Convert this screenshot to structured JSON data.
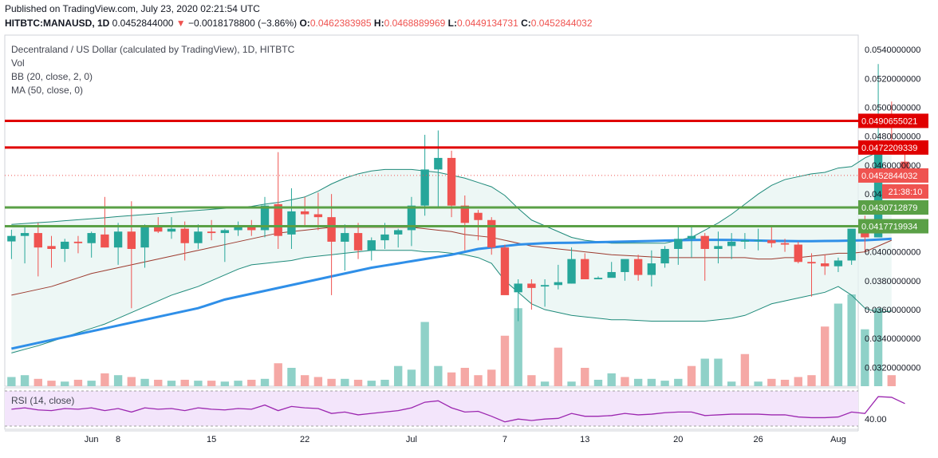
{
  "header": {
    "published": "Published on TradingView.com, July 23, 2020 02:21:54 UTC",
    "symbol": "HITBTC:MANAUSD, 1D",
    "last": "0.0452844000",
    "arrow": "▼",
    "change": "−0.0018178800 (−3.86%)",
    "o_label": "O:",
    "o_value": "0.0462383985",
    "h_label": "H:",
    "h_value": "0.0468889969",
    "l_label": "L:",
    "l_value": "0.0449134731",
    "c_label": "C:",
    "c_value": "0.0452844032"
  },
  "legend": {
    "title": "Decentraland / US Dollar (calculated by TradingView), 1D, HITBTC",
    "vol": "Vol",
    "bb": "BB (20, close, 2, 0)",
    "ma": "MA (50, close, 0)",
    "rsi": "RSI (14, close)"
  },
  "colors": {
    "up": "#26a69a",
    "down": "#ef5350",
    "up_vol": "#8fd1c8",
    "down_vol": "#f5a8a5",
    "ma": "#2f8fe8",
    "bb_band": "#1e8a7a",
    "bb_basis": "#9c3a2e",
    "resistance": "#e00000",
    "support": "#5aa046",
    "rsi": "#9c27b0"
  },
  "chart_data": {
    "type": "candlestick",
    "title": "Decentraland / US Dollar (calculated by TradingView), 1D, HITBTC",
    "ylim": [
      0.0307,
      0.055
    ],
    "y_ticks": [
      "0.0540000000",
      "0.0520000000",
      "0.0500000000",
      "0.0480000000",
      "0.0460000000",
      "0.0440000000",
      "0.0400000000",
      "0.0380000000",
      "0.0360000000",
      "0.0340000000",
      "0.0320000000"
    ],
    "x_ticks": [
      {
        "label": "Jun",
        "day": 6
      },
      {
        "label": "8",
        "day": 8
      },
      {
        "label": "15",
        "day": 15
      },
      {
        "label": "22",
        "day": 22
      },
      {
        "label": "Jul",
        "day": 30
      },
      {
        "label": "7",
        "day": 37
      },
      {
        "label": "13",
        "day": 43
      },
      {
        "label": "20",
        "day": 50
      },
      {
        "label": "26",
        "day": 56
      },
      {
        "label": "Aug",
        "day": 62
      }
    ],
    "x_start_day": -0.5,
    "x_end_day": 63.5,
    "candles": [
      [
        0.04072,
        0.04153,
        0.0395,
        0.0411
      ],
      [
        0.0411,
        0.0417,
        0.0392,
        0.0413
      ],
      [
        0.0413,
        0.042,
        0.0383,
        0.0403
      ],
      [
        0.0404,
        0.0411,
        0.0389,
        0.0402
      ],
      [
        0.0402,
        0.0409,
        0.0393,
        0.0407
      ],
      [
        0.0407,
        0.0411,
        0.0399,
        0.0406
      ],
      [
        0.0406,
        0.0414,
        0.0396,
        0.0413
      ],
      [
        0.0412,
        0.0438,
        0.0403,
        0.0403
      ],
      [
        0.0403,
        0.042,
        0.0391,
        0.0414
      ],
      [
        0.0414,
        0.0435,
        0.0361,
        0.0402
      ],
      [
        0.0403,
        0.0419,
        0.0389,
        0.0417
      ],
      [
        0.0417,
        0.0424,
        0.0413,
        0.0414
      ],
      [
        0.0414,
        0.0424,
        0.0409,
        0.0416
      ],
      [
        0.0416,
        0.0421,
        0.0394,
        0.0406
      ],
      [
        0.0406,
        0.0419,
        0.0402,
        0.0414
      ],
      [
        0.0414,
        0.0422,
        0.0408,
        0.0413
      ],
      [
        0.0413,
        0.0416,
        0.0393,
        0.0415
      ],
      [
        0.0415,
        0.0421,
        0.0411,
        0.0418
      ],
      [
        0.0418,
        0.0422,
        0.0411,
        0.0415
      ],
      [
        0.0415,
        0.0438,
        0.041,
        0.0432
      ],
      [
        0.0433,
        0.0469,
        0.0402,
        0.0411
      ],
      [
        0.0412,
        0.0444,
        0.0402,
        0.0428
      ],
      [
        0.0428,
        0.0438,
        0.0417,
        0.0426
      ],
      [
        0.0426,
        0.0441,
        0.0415,
        0.0424
      ],
      [
        0.0424,
        0.044,
        0.037,
        0.0407
      ],
      [
        0.0407,
        0.0419,
        0.0387,
        0.0413
      ],
      [
        0.0413,
        0.042,
        0.0395,
        0.0401
      ],
      [
        0.0401,
        0.041,
        0.0394,
        0.0408
      ],
      [
        0.0408,
        0.042,
        0.0402,
        0.0412
      ],
      [
        0.0412,
        0.0416,
        0.0403,
        0.0415
      ],
      [
        0.0415,
        0.0438,
        0.0404,
        0.0432
      ],
      [
        0.0432,
        0.0481,
        0.0425,
        0.0457
      ],
      [
        0.0457,
        0.0484,
        0.0431,
        0.0465
      ],
      [
        0.0465,
        0.047,
        0.0424,
        0.0432
      ],
      [
        0.0432,
        0.0439,
        0.0401,
        0.042
      ],
      [
        0.0427,
        0.0429,
        0.0408,
        0.0422
      ],
      [
        0.0422,
        0.0424,
        0.0398,
        0.0403
      ],
      [
        0.0403,
        0.0405,
        0.0371,
        0.037
      ],
      [
        0.0372,
        0.0381,
        0.0352,
        0.0378
      ],
      [
        0.0378,
        0.0381,
        0.036,
        0.0375
      ],
      [
        0.0376,
        0.0381,
        0.0362,
        0.0377
      ],
      [
        0.0377,
        0.0391,
        0.0374,
        0.0379
      ],
      [
        0.0378,
        0.0403,
        0.0378,
        0.0395
      ],
      [
        0.0395,
        0.0399,
        0.0383,
        0.0381
      ],
      [
        0.0381,
        0.0383,
        0.0381,
        0.0382
      ],
      [
        0.0382,
        0.0393,
        0.0383,
        0.0386
      ],
      [
        0.0386,
        0.0394,
        0.038,
        0.0395
      ],
      [
        0.0395,
        0.0398,
        0.038,
        0.0384
      ],
      [
        0.0384,
        0.0401,
        0.0376,
        0.0392
      ],
      [
        0.0392,
        0.0404,
        0.0389,
        0.0402
      ],
      [
        0.0402,
        0.0418,
        0.0391,
        0.0409
      ],
      [
        0.0409,
        0.0417,
        0.0396,
        0.0411
      ],
      [
        0.0411,
        0.0413,
        0.038,
        0.0402
      ],
      [
        0.0402,
        0.0414,
        0.0392,
        0.0404
      ],
      [
        0.0404,
        0.0413,
        0.0395,
        0.0407
      ],
      [
        0.0407,
        0.0413,
        0.0402,
        0.0408
      ],
      [
        0.0408,
        0.0416,
        0.0401,
        0.0408
      ],
      [
        0.0408,
        0.0418,
        0.0403,
        0.0406
      ],
      [
        0.0406,
        0.0409,
        0.04,
        0.0405
      ],
      [
        0.0405,
        0.0407,
        0.0392,
        0.0393
      ],
      [
        0.0393,
        0.0399,
        0.0369,
        0.0392
      ],
      [
        0.0392,
        0.0398,
        0.0384,
        0.039
      ],
      [
        0.039,
        0.0396,
        0.0386,
        0.0394
      ],
      [
        0.0394,
        0.0415,
        0.0391,
        0.0416
      ],
      [
        0.0416,
        0.0425,
        0.04,
        0.041
      ],
      [
        0.041,
        0.053,
        0.041,
        0.0472
      ],
      [
        0.0472,
        0.0504,
        0.0468,
        0.0471
      ],
      [
        0.04624,
        0.04689,
        0.04491,
        0.04528
      ]
    ],
    "bb_upper": [
      0.0419,
      0.04196,
      0.04202,
      0.04208,
      0.04215,
      0.04222,
      0.04229,
      0.04236,
      0.04244,
      0.04251,
      0.04258,
      0.04265,
      0.04272,
      0.0428,
      0.04287,
      0.04294,
      0.04301,
      0.04308,
      0.04315,
      0.0433,
      0.04342,
      0.0436,
      0.0438,
      0.0442,
      0.0447,
      0.0451,
      0.0454,
      0.0456,
      0.0457,
      0.0457,
      0.0457,
      0.0456,
      0.0455,
      0.0453,
      0.0451,
      0.0448,
      0.0445,
      0.0439,
      0.043,
      0.0422,
      0.0418,
      0.0414,
      0.041,
      0.0408,
      0.0407,
      0.0406,
      0.0406,
      0.0406,
      0.0406,
      0.0406,
      0.0408,
      0.041,
      0.0415,
      0.042,
      0.0426,
      0.0433,
      0.044,
      0.0446,
      0.045,
      0.0452,
      0.0454,
      0.0455,
      0.0458,
      0.0459,
      0.0465,
      0.0469,
      0.047
    ],
    "bb_lower": [
      0.033,
      0.03325,
      0.0335,
      0.0338,
      0.0341,
      0.0344,
      0.0347,
      0.035,
      0.0354,
      0.0358,
      0.0362,
      0.0366,
      0.037,
      0.0373,
      0.0376,
      0.038,
      0.0384,
      0.0388,
      0.0391,
      0.0392,
      0.0393,
      0.0394,
      0.0396,
      0.0397,
      0.0398,
      0.0399,
      0.04,
      0.0401,
      0.0401,
      0.0401,
      0.0401,
      0.04,
      0.04,
      0.0399,
      0.0398,
      0.0396,
      0.0392,
      0.038,
      0.0372,
      0.0364,
      0.036,
      0.0358,
      0.0356,
      0.0355,
      0.0354,
      0.0353,
      0.0353,
      0.03525,
      0.0352,
      0.0352,
      0.0352,
      0.0352,
      0.0352,
      0.0353,
      0.0354,
      0.0356,
      0.036,
      0.0364,
      0.0366,
      0.0368,
      0.037,
      0.0372,
      0.0376,
      0.037,
      0.0361,
      0.0358,
      0.0359
    ],
    "bb_basis": [
      0.037,
      0.0372,
      0.0374,
      0.0376,
      0.0379,
      0.0382,
      0.0385,
      0.0387,
      0.0389,
      0.0391,
      0.0393,
      0.0395,
      0.0397,
      0.0399,
      0.0401,
      0.0403,
      0.0405,
      0.0407,
      0.0409,
      0.0411,
      0.0413,
      0.0414,
      0.0415,
      0.0416,
      0.0417,
      0.0417,
      0.0417,
      0.0417,
      0.0417,
      0.0417,
      0.0417,
      0.0416,
      0.0415,
      0.0414,
      0.0412,
      0.0411,
      0.041,
      0.0408,
      0.0406,
      0.0404,
      0.0403,
      0.0402,
      0.0401,
      0.04,
      0.0399,
      0.0398,
      0.03975,
      0.0397,
      0.03965,
      0.0396,
      0.0396,
      0.0396,
      0.0396,
      0.0396,
      0.0396,
      0.0396,
      0.0395,
      0.0395,
      0.0396,
      0.0396,
      0.0397,
      0.0398,
      0.0399,
      0.0399,
      0.04,
      0.0404,
      0.0408
    ],
    "ma50": [
      0.0333,
      0.0335,
      0.0337,
      0.0339,
      0.0341,
      0.0343,
      0.0345,
      0.0347,
      0.0349,
      0.0351,
      0.0353,
      0.0355,
      0.0357,
      0.0359,
      0.0361,
      0.0364,
      0.0367,
      0.0369,
      0.0371,
      0.0373,
      0.0375,
      0.0377,
      0.0379,
      0.0381,
      0.0383,
      0.0385,
      0.0387,
      0.0389,
      0.03905,
      0.0392,
      0.03935,
      0.0395,
      0.03965,
      0.0398,
      0.04,
      0.0402,
      0.0403,
      0.0404,
      0.0405,
      0.04055,
      0.0406,
      0.04062,
      0.04063,
      0.04065,
      0.04067,
      0.04069,
      0.04071,
      0.04073,
      0.04075,
      0.04078,
      0.0408,
      0.04082,
      0.04083,
      0.04083,
      0.04082,
      0.0408,
      0.04078,
      0.04076,
      0.04075,
      0.04074,
      0.04074,
      0.04075,
      0.04076,
      0.04078,
      0.0408,
      0.04085,
      0.0409
    ],
    "volume": [
      0.1,
      0.12,
      0.08,
      0.06,
      0.05,
      0.07,
      0.06,
      0.14,
      0.12,
      0.1,
      0.08,
      0.07,
      0.06,
      0.07,
      0.06,
      0.06,
      0.05,
      0.06,
      0.07,
      0.08,
      0.25,
      0.2,
      0.12,
      0.1,
      0.08,
      0.08,
      0.07,
      0.06,
      0.07,
      0.22,
      0.18,
      0.7,
      0.22,
      0.15,
      0.2,
      0.12,
      0.18,
      0.55,
      0.85,
      0.12,
      0.05,
      0.42,
      0.05,
      0.2,
      0.07,
      0.14,
      0.1,
      0.08,
      0.08,
      0.06,
      0.08,
      0.22,
      0.3,
      0.3,
      0.05,
      0.35,
      0.05,
      0.08,
      0.07,
      0.1,
      0.12,
      0.65,
      0.9,
      1.0,
      0.62,
      0.85,
      0.12
    ],
    "volume_up": [
      true,
      true,
      false,
      false,
      true,
      false,
      true,
      false,
      true,
      false,
      true,
      false,
      true,
      false,
      true,
      false,
      true,
      true,
      false,
      true,
      false,
      true,
      false,
      false,
      false,
      true,
      false,
      true,
      true,
      true,
      true,
      true,
      true,
      false,
      false,
      false,
      false,
      false,
      true,
      false,
      true,
      false,
      true,
      false,
      true,
      true,
      false,
      true,
      true,
      true,
      true,
      false,
      true,
      true,
      true,
      false,
      true,
      false,
      false,
      false,
      false,
      false,
      true,
      true,
      true,
      true,
      false
    ],
    "rsi": [
      54,
      56,
      53,
      52,
      55,
      54,
      56,
      52,
      55,
      50,
      56,
      54,
      55,
      52,
      56,
      54,
      53,
      55,
      54,
      60,
      52,
      58,
      56,
      55,
      48,
      50,
      46,
      48,
      50,
      52,
      56,
      64,
      66,
      56,
      50,
      51,
      44,
      36,
      40,
      38,
      40,
      41,
      48,
      44,
      44,
      45,
      48,
      46,
      47,
      49,
      50,
      50,
      45,
      46,
      47,
      47,
      47,
      46,
      46,
      43,
      42,
      42,
      43,
      50,
      48,
      72,
      71,
      62
    ],
    "rsi_ticks": [
      "40.00"
    ],
    "horizontal_lines": [
      {
        "value": 0.0490655021,
        "label": "0.0490655021",
        "kind": "resistance"
      },
      {
        "value": 0.0472209339,
        "label": "0.0472209339",
        "kind": "resistance"
      },
      {
        "value": 0.0430712879,
        "label": "0.0430712879",
        "kind": "support"
      },
      {
        "value": 0.0417719934,
        "label": "0.0417719934",
        "kind": "support"
      }
    ],
    "last_price": {
      "value": 0.0452844032,
      "label": "0.0452844032",
      "countdown": "21:38:10"
    }
  }
}
